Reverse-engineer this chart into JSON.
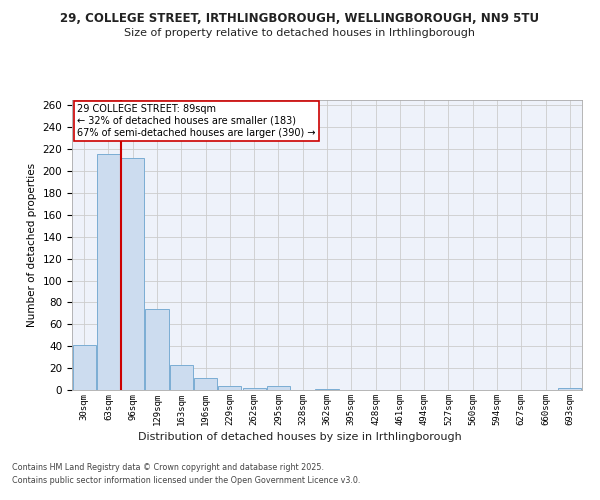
{
  "title1": "29, COLLEGE STREET, IRTHLINGBOROUGH, WELLINGBOROUGH, NN9 5TU",
  "title2": "Size of property relative to detached houses in Irthlingborough",
  "xlabel": "Distribution of detached houses by size in Irthlingborough",
  "ylabel": "Number of detached properties",
  "categories": [
    "30sqm",
    "63sqm",
    "96sqm",
    "129sqm",
    "163sqm",
    "196sqm",
    "229sqm",
    "262sqm",
    "295sqm",
    "328sqm",
    "362sqm",
    "395sqm",
    "428sqm",
    "461sqm",
    "494sqm",
    "527sqm",
    "560sqm",
    "594sqm",
    "627sqm",
    "660sqm",
    "693sqm"
  ],
  "values": [
    41,
    216,
    212,
    74,
    23,
    11,
    4,
    2,
    4,
    0,
    1,
    0,
    0,
    0,
    0,
    0,
    0,
    0,
    0,
    0,
    2
  ],
  "bar_color": "#ccdcef",
  "bar_edge_color": "#7aadd4",
  "vline_x": 1.5,
  "vline_color": "#cc0000",
  "annotation_text": "29 COLLEGE STREET: 89sqm\n← 32% of detached houses are smaller (183)\n67% of semi-detached houses are larger (390) →",
  "annotation_box_color": "#ffffff",
  "annotation_box_edge": "#cc0000",
  "ylim": [
    0,
    265
  ],
  "yticks": [
    0,
    20,
    40,
    60,
    80,
    100,
    120,
    140,
    160,
    180,
    200,
    220,
    240,
    260
  ],
  "grid_color": "#cccccc",
  "bg_color": "#eef2fa",
  "fig_color": "#ffffff",
  "footer1": "Contains HM Land Registry data © Crown copyright and database right 2025.",
  "footer2": "Contains public sector information licensed under the Open Government Licence v3.0."
}
